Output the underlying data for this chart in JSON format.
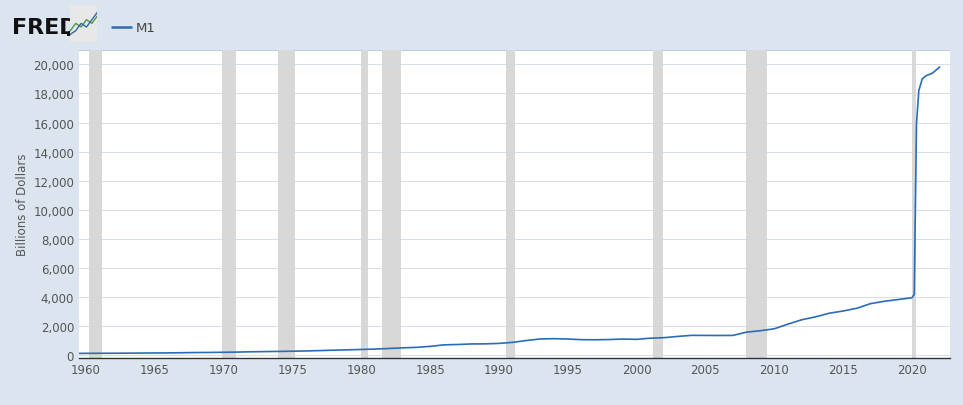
{
  "title": "M1",
  "ylabel": "Billions of Dollars",
  "xlim": [
    1959.5,
    2022.8
  ],
  "ylim": [
    -200,
    21000
  ],
  "yticks": [
    0,
    2000,
    4000,
    6000,
    8000,
    10000,
    12000,
    14000,
    16000,
    18000,
    20000
  ],
  "xticks": [
    1960,
    1965,
    1970,
    1975,
    1980,
    1985,
    1990,
    1995,
    2000,
    2005,
    2010,
    2015,
    2020
  ],
  "line_color": "#2b6cb8",
  "outer_bg_color": "#dce5ef",
  "plot_bg_color": "#ffffff",
  "recession_bands": [
    [
      1960.25,
      1961.17
    ],
    [
      1969.92,
      1970.92
    ],
    [
      1973.92,
      1975.17
    ],
    [
      1980.0,
      1980.5
    ],
    [
      1981.5,
      1982.92
    ],
    [
      1990.5,
      1991.17
    ],
    [
      2001.17,
      2001.92
    ],
    [
      2007.92,
      2009.5
    ],
    [
      2020.0,
      2020.33
    ]
  ],
  "recession_color": "#d8d8d8",
  "m1_data_years": [
    1959.5,
    1960,
    1961,
    1962,
    1963,
    1964,
    1965,
    1966,
    1967,
    1968,
    1969,
    1970,
    1971,
    1972,
    1973,
    1974,
    1975,
    1976,
    1977,
    1978,
    1979,
    1980,
    1981,
    1982,
    1983,
    1984,
    1985,
    1986,
    1987,
    1988,
    1989,
    1990,
    1991,
    1992,
    1993,
    1994,
    1995,
    1996,
    1997,
    1998,
    1999,
    2000,
    2001,
    2002,
    2003,
    2004,
    2005,
    2006,
    2007,
    2008,
    2009,
    2010,
    2011,
    2012,
    2013,
    2014,
    2015,
    2016,
    2017,
    2018,
    2019,
    2020.0,
    2020.17,
    2020.33,
    2020.5,
    2020.75,
    2021.0,
    2021.5,
    2022.0
  ],
  "m1_data_values": [
    138,
    141,
    146,
    148,
    153,
    160,
    167,
    172,
    183,
    196,
    203,
    214,
    228,
    249,
    262,
    274,
    287,
    306,
    331,
    358,
    381,
    408,
    436,
    474,
    520,
    551,
    619,
    724,
    749,
    786,
    793,
    824,
    896,
    1024,
    1128,
    1150,
    1127,
    1081,
    1073,
    1091,
    1123,
    1102,
    1182,
    1219,
    1305,
    1377,
    1373,
    1367,
    1374,
    1600,
    1695,
    1829,
    2149,
    2449,
    2649,
    2899,
    3049,
    3239,
    3559,
    3719,
    3839,
    3962,
    4200,
    15900,
    18200,
    19000,
    19200,
    19400,
    19800
  ]
}
